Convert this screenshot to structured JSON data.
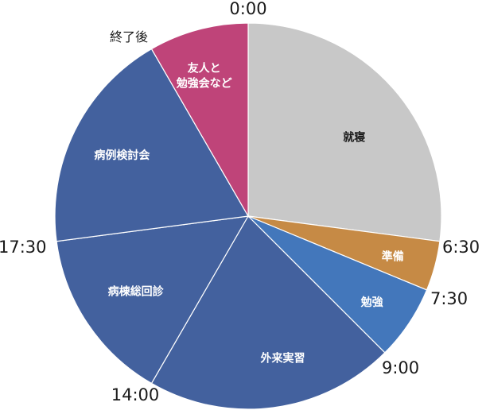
{
  "chart_data": {
    "type": "pie",
    "title": "",
    "start_time": "0:00",
    "slices": [
      {
        "label": "就寝",
        "start": "0:00",
        "end": "6:30",
        "hours": 6.5,
        "color": "#c8c8c8",
        "text_color": "#1a1a1a"
      },
      {
        "label": "準備",
        "start": "6:30",
        "end": "7:30",
        "hours": 1.0,
        "color": "#c68a45",
        "text_color": "#ffffff"
      },
      {
        "label": "勉強",
        "start": "7:30",
        "end": "9:00",
        "hours": 1.5,
        "color": "#4377bb",
        "text_color": "#ffffff"
      },
      {
        "label": "外来実習",
        "start": "9:00",
        "end": "14:00",
        "hours": 5.0,
        "color": "#43619e",
        "text_color": "#ffffff"
      },
      {
        "label": "病棟総回診",
        "start": "14:00",
        "end": "17:30",
        "hours": 3.5,
        "color": "#43619e",
        "text_color": "#ffffff"
      },
      {
        "label": "病例検討会",
        "start": "17:30",
        "end": "終了後",
        "hours": 4.5,
        "color": "#43619e",
        "text_color": "#ffffff"
      },
      {
        "label": "友人と\n勉強会など",
        "start": "終了後",
        "end": "0:00",
        "hours": 2.0,
        "color": "#bf4479",
        "text_color": "#ffffff"
      }
    ],
    "boundary_labels": [
      "0:00",
      "6:30",
      "7:30",
      "9:00",
      "14:00",
      "17:30",
      "終了後"
    ]
  }
}
